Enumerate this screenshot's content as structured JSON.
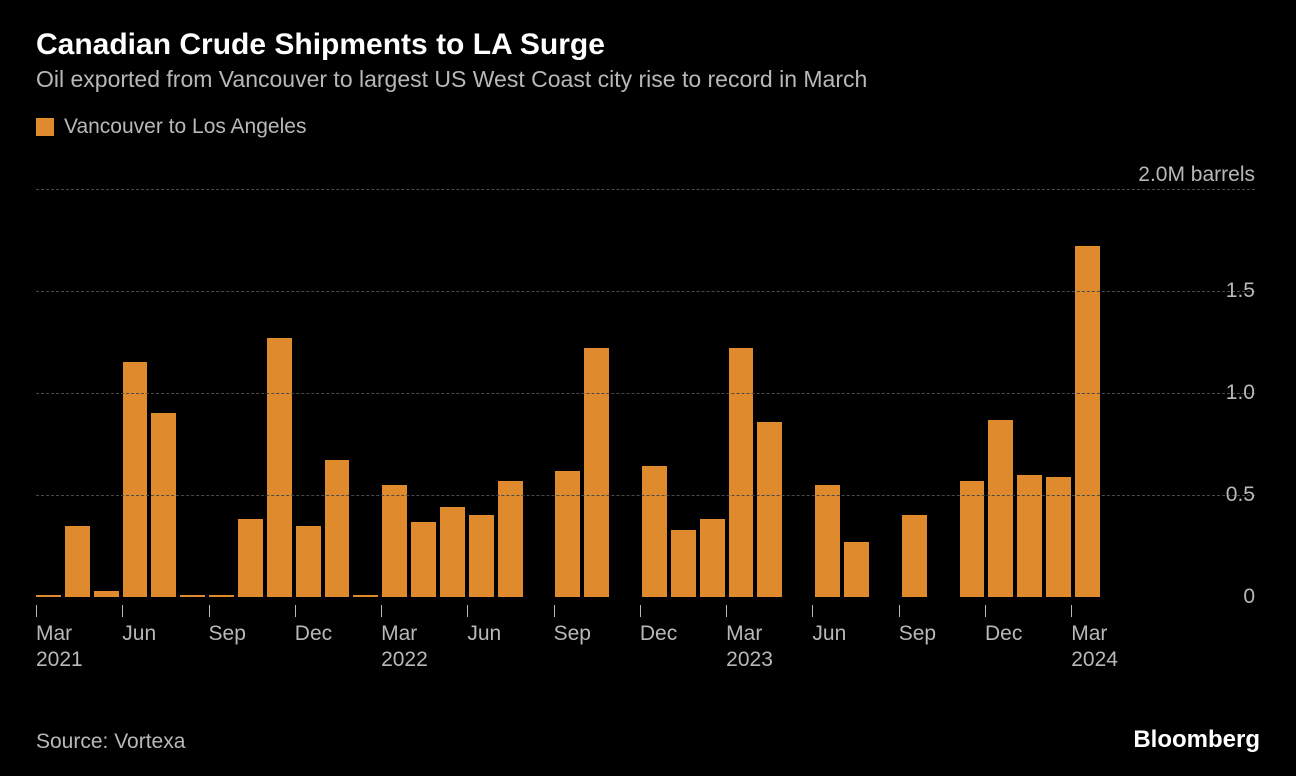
{
  "chart": {
    "type": "bar",
    "title": "Canadian Crude Shipments to LA Surge",
    "subtitle": "Oil exported from Vancouver to largest US West Coast city rise to record in March",
    "legend_label": "Vancouver to Los Angeles",
    "series_color": "#e08a2e",
    "background_color": "#000000",
    "grid_color": "#4a4a4a",
    "text_color": "#b8b8b8",
    "title_color": "#ffffff",
    "title_fontsize": 30,
    "subtitle_fontsize": 23,
    "label_fontsize": 21,
    "y_axis_title": "2.0M barrels",
    "ylim": [
      0,
      2.0
    ],
    "y_ticks": [
      0,
      0.5,
      1.0,
      1.5
    ],
    "y_tick_labels": [
      "0",
      "0.5",
      "1.0",
      "1.5"
    ],
    "values": [
      0.01,
      0.35,
      0.03,
      1.15,
      0.9,
      0.01,
      0.01,
      0.38,
      1.27,
      0.35,
      0.67,
      0.01,
      0.55,
      0.37,
      0.44,
      0.4,
      0.57,
      0.0,
      0.62,
      1.22,
      0.0,
      0.64,
      0.33,
      0.38,
      1.22,
      0.86,
      0.0,
      0.55,
      0.27,
      0.0,
      0.4,
      0.0,
      0.57,
      0.87,
      0.6,
      0.59,
      1.72
    ],
    "x_ticks": [
      {
        "index": 0,
        "label": "Mar\n2021"
      },
      {
        "index": 3,
        "label": "Jun"
      },
      {
        "index": 6,
        "label": "Sep"
      },
      {
        "index": 9,
        "label": "Dec"
      },
      {
        "index": 12,
        "label": "Mar\n2022"
      },
      {
        "index": 15,
        "label": "Jun"
      },
      {
        "index": 18,
        "label": "Sep"
      },
      {
        "index": 21,
        "label": "Dec"
      },
      {
        "index": 24,
        "label": "Mar\n2023"
      },
      {
        "index": 27,
        "label": "Jun"
      },
      {
        "index": 30,
        "label": "Sep"
      },
      {
        "index": 33,
        "label": "Dec"
      },
      {
        "index": 36,
        "label": "Mar\n2024"
      }
    ],
    "source": "Source: Vortexa",
    "brand": "Bloomberg"
  }
}
